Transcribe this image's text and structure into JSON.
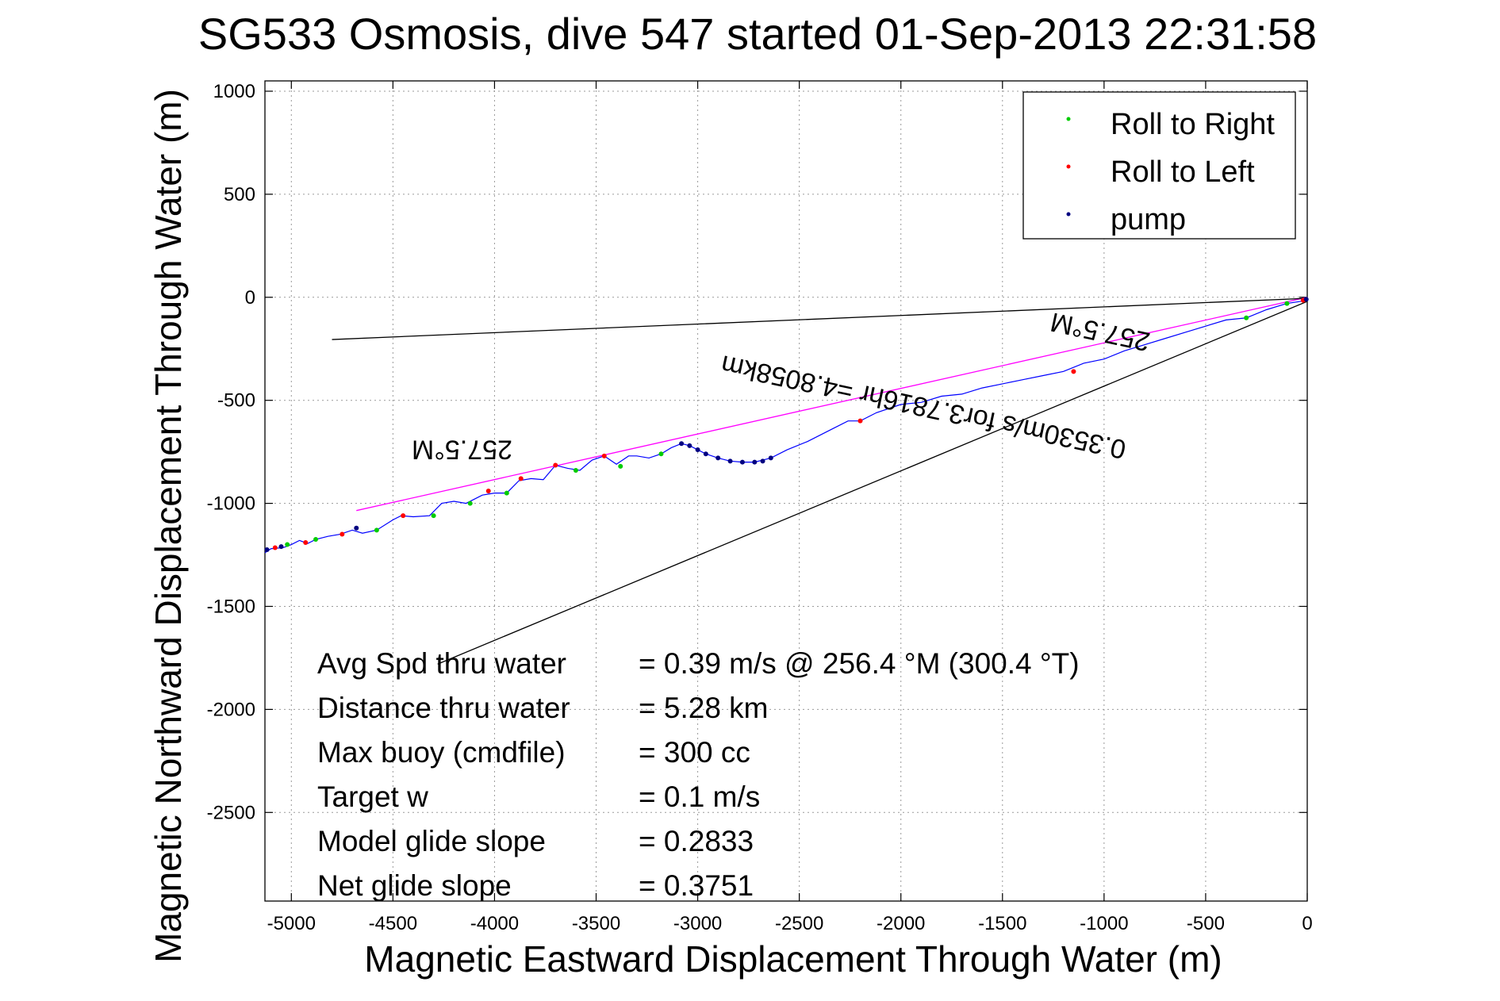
{
  "chart_data": {
    "type": "scatter",
    "title": "SG533 Osmosis, dive 547 started 01-Sep-2013 22:31:58",
    "xlabel": "Magnetic Eastward Displacement Through Water (m)",
    "ylabel": "Magnetic Northward Displacement Through Water (m)",
    "xlim": [
      -5130,
      0
    ],
    "ylim": [
      -2930,
      1050
    ],
    "xticks": [
      -5000,
      -4500,
      -4000,
      -3500,
      -3000,
      -2500,
      -2000,
      -1500,
      -1000,
      -500,
      0
    ],
    "yticks": [
      1000,
      500,
      0,
      -500,
      -1000,
      -1500,
      -2000,
      -2500
    ],
    "grid": true,
    "legend_position": "top-right",
    "series": [
      {
        "name": "Roll to Right",
        "color": "#00cc00",
        "points": [
          [
            -5020,
            -1200
          ],
          [
            -4880,
            -1175
          ],
          [
            -4580,
            -1130
          ],
          [
            -4300,
            -1060
          ],
          [
            -4120,
            -1000
          ],
          [
            -3940,
            -950
          ],
          [
            -3600,
            -840
          ],
          [
            -3380,
            -820
          ],
          [
            -3180,
            -760
          ],
          [
            -300,
            -100
          ],
          [
            -100,
            -30
          ]
        ]
      },
      {
        "name": "Roll to Left",
        "color": "#ff0000",
        "points": [
          [
            -5080,
            -1215
          ],
          [
            -4930,
            -1190
          ],
          [
            -4750,
            -1150
          ],
          [
            -4450,
            -1060
          ],
          [
            -4030,
            -940
          ],
          [
            -3870,
            -880
          ],
          [
            -3700,
            -815
          ],
          [
            -3460,
            -770
          ],
          [
            -2200,
            -600
          ],
          [
            -1150,
            -360
          ],
          [
            -20,
            -15
          ]
        ]
      },
      {
        "name": "pump",
        "color": "#000080",
        "points": [
          [
            -5120,
            -1225
          ],
          [
            -5050,
            -1210
          ],
          [
            -4680,
            -1120
          ],
          [
            -3080,
            -710
          ],
          [
            -3040,
            -720
          ],
          [
            -3000,
            -740
          ],
          [
            -2960,
            -760
          ],
          [
            -2900,
            -780
          ],
          [
            -2840,
            -795
          ],
          [
            -2780,
            -800
          ],
          [
            -2720,
            -800
          ],
          [
            -2680,
            -795
          ],
          [
            -2640,
            -780
          ],
          [
            -5,
            -10
          ]
        ]
      }
    ],
    "track": [
      [
        -5130,
        -1240
      ],
      [
        -5100,
        -1220
      ],
      [
        -5040,
        -1215
      ],
      [
        -5000,
        -1200
      ],
      [
        -4960,
        -1180
      ],
      [
        -4920,
        -1195
      ],
      [
        -4880,
        -1175
      ],
      [
        -4820,
        -1160
      ],
      [
        -4760,
        -1150
      ],
      [
        -4700,
        -1130
      ],
      [
        -4650,
        -1145
      ],
      [
        -4580,
        -1130
      ],
      [
        -4500,
        -1080
      ],
      [
        -4460,
        -1060
      ],
      [
        -4400,
        -1065
      ],
      [
        -4320,
        -1060
      ],
      [
        -4260,
        -1000
      ],
      [
        -4200,
        -990
      ],
      [
        -4140,
        -1000
      ],
      [
        -4060,
        -960
      ],
      [
        -4000,
        -950
      ],
      [
        -3940,
        -950
      ],
      [
        -3880,
        -890
      ],
      [
        -3820,
        -880
      ],
      [
        -3760,
        -885
      ],
      [
        -3700,
        -815
      ],
      [
        -3640,
        -830
      ],
      [
        -3580,
        -840
      ],
      [
        -3520,
        -790
      ],
      [
        -3460,
        -770
      ],
      [
        -3400,
        -810
      ],
      [
        -3340,
        -770
      ],
      [
        -3300,
        -770
      ],
      [
        -3240,
        -780
      ],
      [
        -3180,
        -760
      ],
      [
        -3130,
        -730
      ],
      [
        -3080,
        -710
      ],
      [
        -3040,
        -720
      ],
      [
        -3000,
        -740
      ],
      [
        -2960,
        -760
      ],
      [
        -2900,
        -780
      ],
      [
        -2840,
        -795
      ],
      [
        -2780,
        -800
      ],
      [
        -2720,
        -800
      ],
      [
        -2640,
        -780
      ],
      [
        -2560,
        -740
      ],
      [
        -2460,
        -700
      ],
      [
        -2340,
        -640
      ],
      [
        -2260,
        -600
      ],
      [
        -2200,
        -600
      ],
      [
        -2120,
        -560
      ],
      [
        -2000,
        -520
      ],
      [
        -1900,
        -510
      ],
      [
        -1800,
        -480
      ],
      [
        -1700,
        -470
      ],
      [
        -1600,
        -440
      ],
      [
        -1500,
        -420
      ],
      [
        -1400,
        -400
      ],
      [
        -1300,
        -380
      ],
      [
        -1200,
        -360
      ],
      [
        -1100,
        -320
      ],
      [
        -1000,
        -300
      ],
      [
        -900,
        -260
      ],
      [
        -800,
        -230
      ],
      [
        -700,
        -200
      ],
      [
        -600,
        -170
      ],
      [
        -500,
        -140
      ],
      [
        -400,
        -110
      ],
      [
        -300,
        -100
      ],
      [
        -200,
        -60
      ],
      [
        -100,
        -30
      ],
      [
        0,
        -15
      ]
    ],
    "lines": [
      {
        "color": "#ff00ff",
        "points": [
          [
            -4680,
            -1035
          ],
          [
            0,
            0
          ]
        ]
      },
      {
        "color": "#000000",
        "points": [
          [
            -4800,
            -205
          ],
          [
            0,
            -5
          ]
        ]
      },
      {
        "color": "#000000",
        "points": [
          [
            -4280,
            -1780
          ],
          [
            0,
            -20
          ]
        ]
      }
    ],
    "annotations": [
      {
        "text": "257.5°M",
        "x": -4160,
        "y": -695,
        "angle": 180
      },
      {
        "text": "257.5°M",
        "x": -1010,
        "y": -125,
        "angle": 192
      },
      {
        "text": "0.3530m/s for3.7816hr =4.8058km",
        "x": -1880,
        "y": -490,
        "angle": 192
      }
    ],
    "stats": [
      {
        "label": "Avg Spd thru water",
        "value": "=  0.39 m/s @ 256.4 °M (300.4 °T)"
      },
      {
        "label": "Distance thru water",
        "value": "=  5.28 km"
      },
      {
        "label": "Max buoy (cmdfile)",
        "value": "= 300 cc"
      },
      {
        "label": "Target w",
        "value": "= 0.1 m/s"
      },
      {
        "label": "Model glide slope",
        "value": "= 0.2833"
      },
      {
        "label": "Net glide slope",
        "value": "= 0.3751"
      }
    ]
  }
}
